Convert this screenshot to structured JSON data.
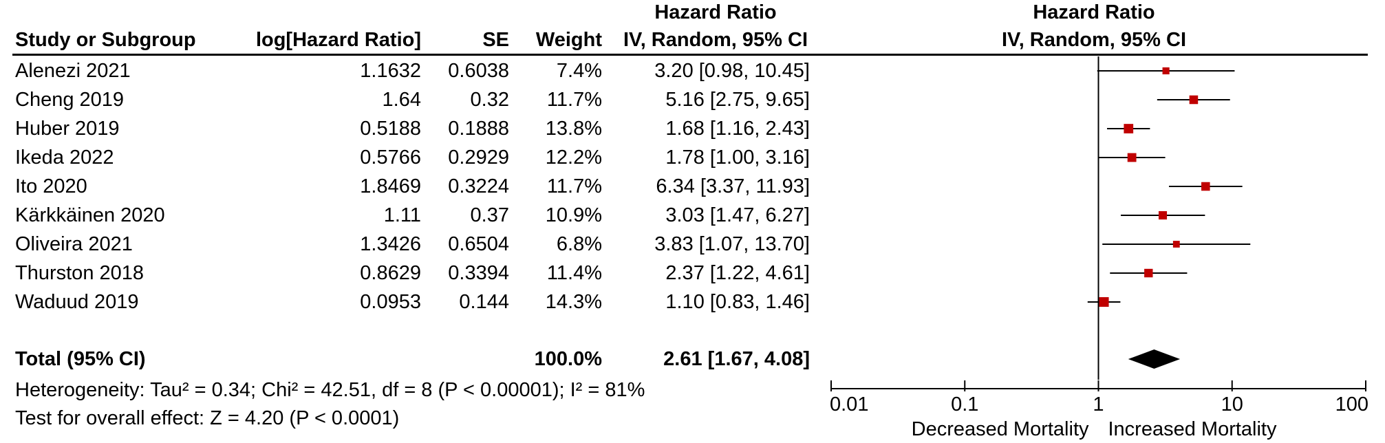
{
  "headers": {
    "study": "Study or Subgroup",
    "loghr": "log[Hazard Ratio]",
    "se": "SE",
    "weight": "Weight",
    "hr_title": "Hazard Ratio",
    "hr_sub": "IV, Random, 95% CI",
    "plot_title": "Hazard Ratio",
    "plot_sub": "IV, Random, 95% CI"
  },
  "studies": [
    {
      "name": "Alenezi 2021",
      "loghr": "1.1632",
      "se": "0.6038",
      "weight": "7.4%",
      "ci": "3.20 [0.98, 10.45]"
    },
    {
      "name": "Cheng 2019",
      "loghr": "1.64",
      "se": "0.32",
      "weight": "11.7%",
      "ci": "5.16 [2.75, 9.65]"
    },
    {
      "name": "Huber 2019",
      "loghr": "0.5188",
      "se": "0.1888",
      "weight": "13.8%",
      "ci": "1.68 [1.16, 2.43]"
    },
    {
      "name": "Ikeda 2022",
      "loghr": "0.5766",
      "se": "0.2929",
      "weight": "12.2%",
      "ci": "1.78 [1.00, 3.16]"
    },
    {
      "name": "Ito 2020",
      "loghr": "1.8469",
      "se": "0.3224",
      "weight": "11.7%",
      "ci": "6.34 [3.37, 11.93]"
    },
    {
      "name": "Kärkkäinen 2020",
      "loghr": "1.11",
      "se": "0.37",
      "weight": "10.9%",
      "ci": "3.03 [1.47, 6.27]"
    },
    {
      "name": "Oliveira 2021",
      "loghr": "1.3426",
      "se": "0.6504",
      "weight": "6.8%",
      "ci": "3.83 [1.07, 13.70]"
    },
    {
      "name": "Thurston 2018",
      "loghr": "0.8629",
      "se": "0.3394",
      "weight": "11.4%",
      "ci": "2.37 [1.22, 4.61]"
    },
    {
      "name": "Waduud 2019",
      "loghr": "0.0953",
      "se": "0.144",
      "weight": "14.3%",
      "ci": "1.10 [0.83, 1.46]"
    }
  ],
  "total": {
    "label": "Total (95% CI)",
    "weight": "100.0%",
    "ci": "2.61 [1.67, 4.08]"
  },
  "heterogeneity": "Heterogeneity: Tau² = 0.34; Chi² = 42.51, df = 8 (P < 0.00001); I² = 81%",
  "overall_effect": "Test for overall effect: Z = 4.20 (P < 0.0001)",
  "axis": {
    "ticks": [
      "0.01",
      "0.1",
      "1",
      "10",
      "100"
    ],
    "left_label": "Decreased Mortality",
    "right_label": "Increased Mortality"
  },
  "colors": {
    "marker": "#c00000",
    "diamond": "#000000",
    "line": "#000000"
  },
  "chart_data": {
    "type": "forest",
    "scale": "log",
    "xlim": [
      0.01,
      100
    ],
    "reference_line": 1,
    "points": [
      {
        "study": "Alenezi 2021",
        "hr": 3.2,
        "lo": 0.98,
        "hi": 10.45,
        "weight": 7.4
      },
      {
        "study": "Cheng 2019",
        "hr": 5.16,
        "lo": 2.75,
        "hi": 9.65,
        "weight": 11.7
      },
      {
        "study": "Huber 2019",
        "hr": 1.68,
        "lo": 1.16,
        "hi": 2.43,
        "weight": 13.8
      },
      {
        "study": "Ikeda 2022",
        "hr": 1.78,
        "lo": 1.0,
        "hi": 3.16,
        "weight": 12.2
      },
      {
        "study": "Ito 2020",
        "hr": 6.34,
        "lo": 3.37,
        "hi": 11.93,
        "weight": 11.7
      },
      {
        "study": "Kärkkäinen 2020",
        "hr": 3.03,
        "lo": 1.47,
        "hi": 6.27,
        "weight": 10.9
      },
      {
        "study": "Oliveira 2021",
        "hr": 3.83,
        "lo": 1.07,
        "hi": 13.7,
        "weight": 6.8
      },
      {
        "study": "Thurston 2018",
        "hr": 2.37,
        "lo": 1.22,
        "hi": 4.61,
        "weight": 11.4
      },
      {
        "study": "Waduud 2019",
        "hr": 1.1,
        "lo": 0.83,
        "hi": 1.46,
        "weight": 14.3
      }
    ],
    "pooled": {
      "hr": 2.61,
      "lo": 1.67,
      "hi": 4.08
    }
  }
}
